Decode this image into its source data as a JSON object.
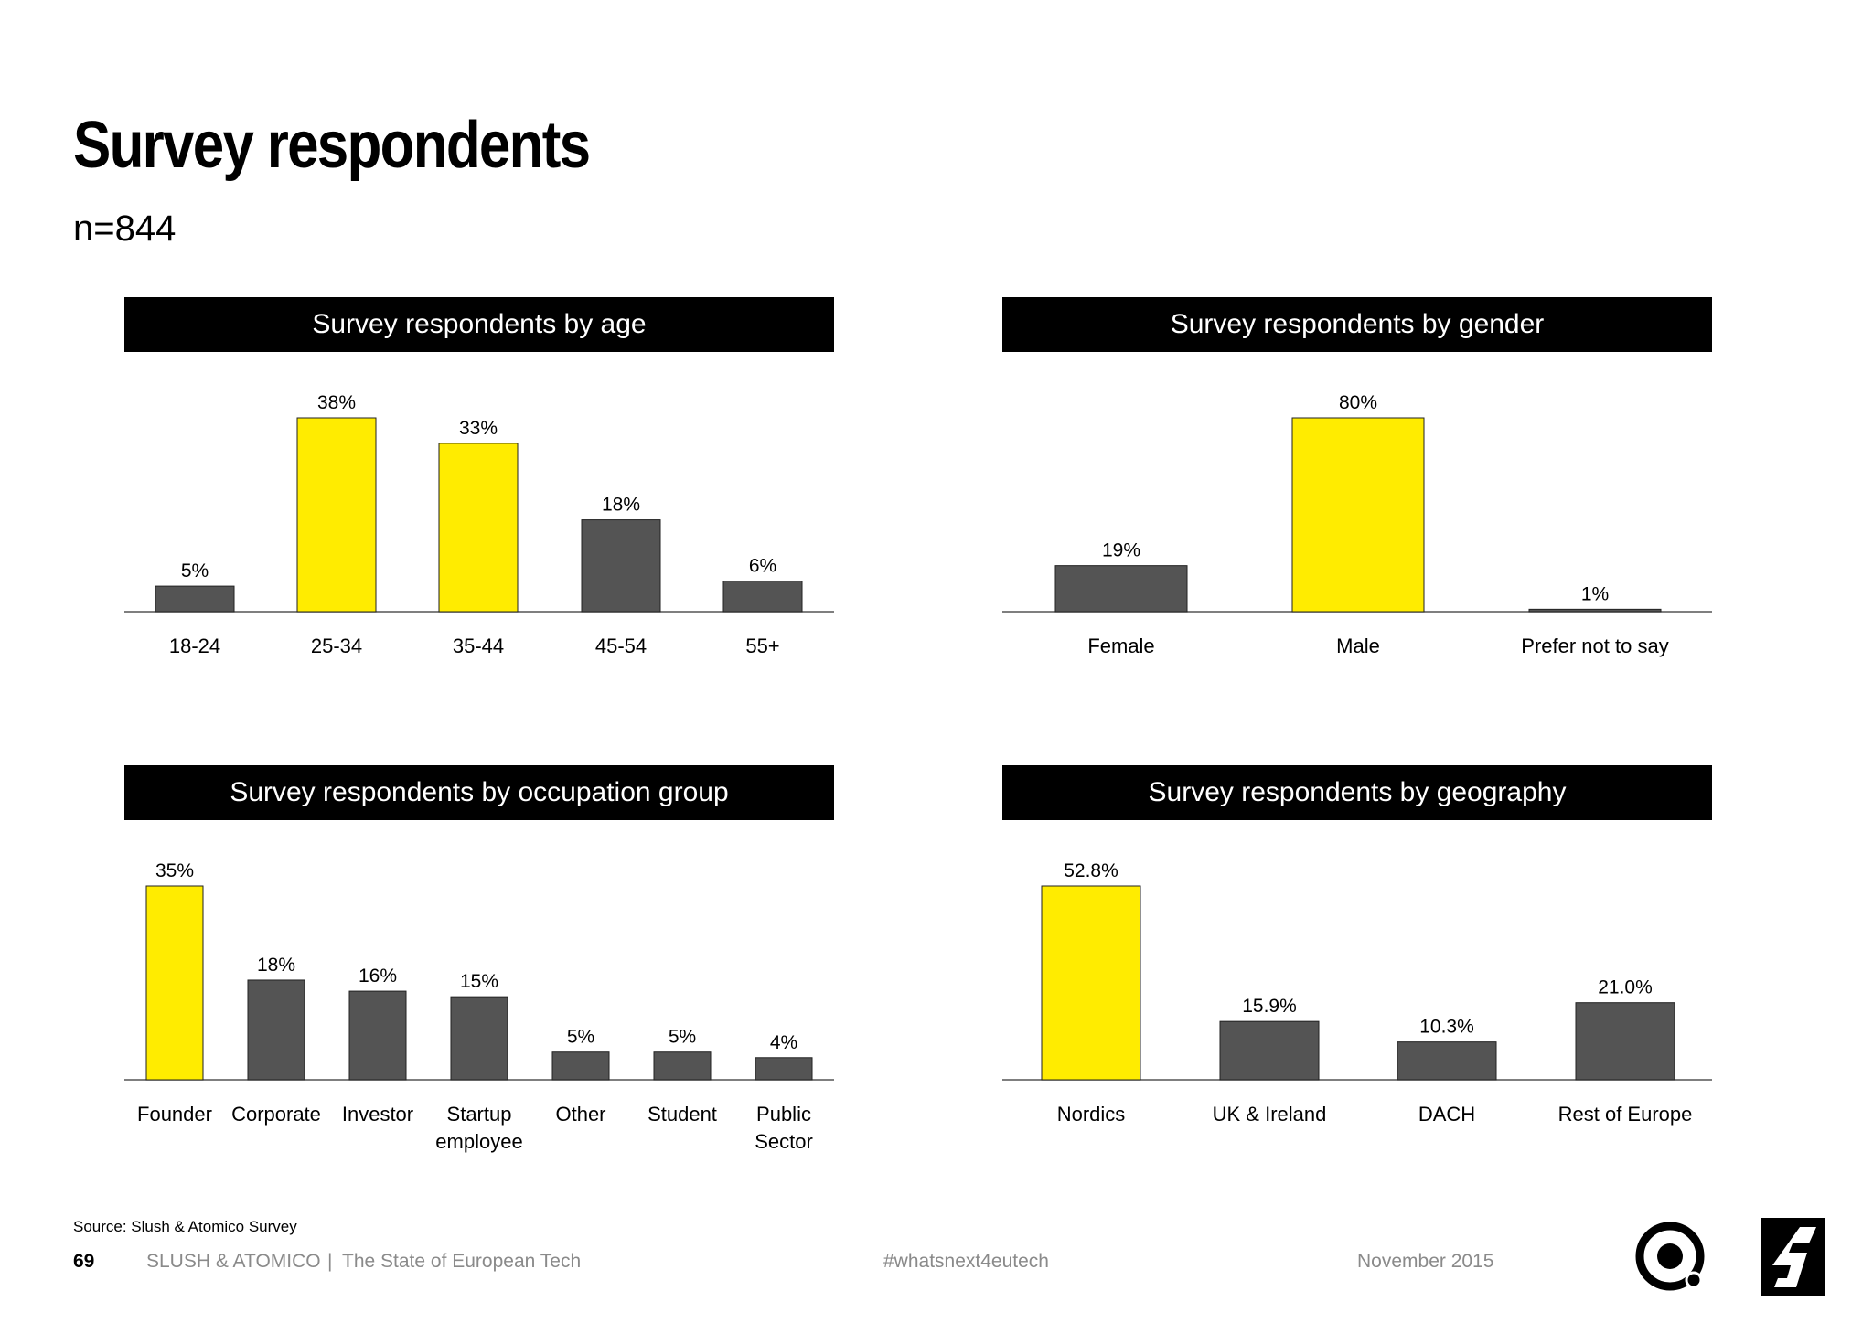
{
  "title": "Survey respondents",
  "subtitle": "n=844",
  "colors": {
    "highlight": "#FFEC00",
    "bar": "#545454",
    "header_bg": "#000000",
    "footer_text": "#8A8A8A"
  },
  "icons": [
    "atomico-ring-logo",
    "slush-logo"
  ],
  "chart_data": [
    {
      "type": "bar",
      "title": "Survey respondents by age",
      "categories": [
        [
          "18-24"
        ],
        [
          "25-34"
        ],
        [
          "35-44"
        ],
        [
          "45-54"
        ],
        [
          "55+"
        ]
      ],
      "values": [
        5,
        38,
        33,
        18,
        6
      ],
      "labels": [
        "5%",
        "38%",
        "33%",
        "18%",
        "6%"
      ],
      "highlight": [
        false,
        true,
        true,
        false,
        false
      ],
      "ylim": [
        0,
        38
      ]
    },
    {
      "type": "bar",
      "title": "Survey respondents by gender",
      "categories": [
        [
          "Female"
        ],
        [
          "Male"
        ],
        [
          "Prefer not to say"
        ]
      ],
      "values": [
        19,
        80,
        1
      ],
      "labels": [
        "19%",
        "80%",
        "1%"
      ],
      "highlight": [
        false,
        true,
        false
      ],
      "ylim": [
        0,
        80
      ]
    },
    {
      "type": "bar",
      "title": "Survey respondents by occupation group",
      "categories": [
        [
          "Founder"
        ],
        [
          "Corporate"
        ],
        [
          "Investor"
        ],
        [
          "Startup",
          "employee"
        ],
        [
          "Other"
        ],
        [
          "Student"
        ],
        [
          "Public",
          "Sector"
        ]
      ],
      "values": [
        35,
        18,
        16,
        15,
        5,
        5,
        4
      ],
      "labels": [
        "35%",
        "18%",
        "16%",
        "15%",
        "5%",
        "5%",
        "4%"
      ],
      "highlight": [
        true,
        false,
        false,
        false,
        false,
        false,
        false
      ],
      "ylim": [
        0,
        35
      ]
    },
    {
      "type": "bar",
      "title": "Survey respondents by geography",
      "categories": [
        [
          "Nordics"
        ],
        [
          "UK & Ireland"
        ],
        [
          "DACH"
        ],
        [
          "Rest of Europe"
        ]
      ],
      "values": [
        52.8,
        15.9,
        10.3,
        21.0
      ],
      "labels": [
        "52.8%",
        "15.9%",
        "10.3%",
        "21.0%"
      ],
      "highlight": [
        true,
        false,
        false,
        false
      ],
      "ylim": [
        0,
        52.8
      ]
    }
  ],
  "footer": {
    "source": "Source: Slush & Atomico Survey",
    "page_number": "69",
    "brand": "SLUSH & ATOMICO",
    "separator": "|",
    "publication": "The State of European Tech",
    "hashtag": "#whatsnext4eutech",
    "date": "November 2015"
  }
}
